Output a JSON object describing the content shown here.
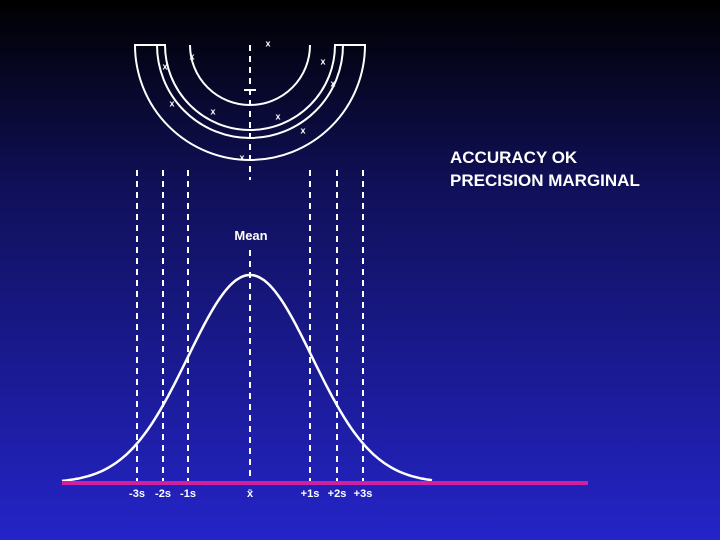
{
  "heading": [
    "ACCURACY OK",
    "PRECISION MARGINAL"
  ],
  "mean_label": "Mean",
  "axis_labels": [
    "-3s",
    "-2s",
    "-1s",
    "x̄",
    "+1s",
    "+2s",
    "+3s"
  ],
  "hits": [
    "x",
    "x",
    "x",
    "x",
    "x",
    "x",
    "x",
    "x",
    "x",
    "x"
  ]
}
